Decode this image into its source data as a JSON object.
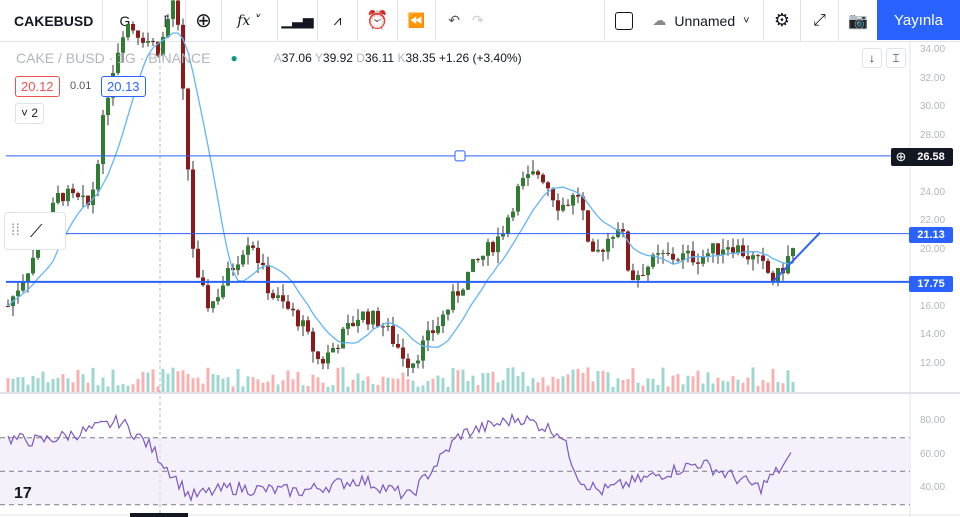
{
  "toolbar": {
    "symbol": "CAKEBUSD",
    "interval": "G",
    "layout_name": "Unnamed",
    "publish": "Yayınla"
  },
  "legend": {
    "title": "CAKE / BUSD · 1G · BINANCE",
    "open_label": "A",
    "open": "37.06",
    "high_label": "Y",
    "high": "39.92",
    "low_label": "D",
    "low": "36.11",
    "close_label": "K",
    "close": "38.35",
    "change": "+1.26 (+3.40%)",
    "sell": "20.12",
    "spread": "0.01",
    "buy": "20.13",
    "indicators_toggle": "2"
  },
  "price_axis": [
    "34.00",
    "32.00",
    "30.00",
    "28.00",
    "24.00",
    "22.00",
    "20.00",
    "16.00",
    "14.00",
    "12.00"
  ],
  "rsi_axis": [
    "80.00",
    "60.00",
    "40.00"
  ],
  "price_labels": {
    "hline_top": "26.58",
    "hline_mid": "21.13",
    "hline_low": "17.75"
  },
  "colors": {
    "up": "#26a69a",
    "down": "#ef5350",
    "accent": "#2962ff",
    "ma": "#64b5f6",
    "rsi": "#7e57c2"
  },
  "chart_data": {
    "type": "candlestick",
    "price_path": [
      [
        0,
        15
      ],
      [
        30,
        19
      ],
      [
        60,
        24
      ],
      [
        90,
        23
      ],
      [
        110,
        32
      ],
      [
        125,
        36
      ],
      [
        160,
        34
      ],
      [
        175,
        38
      ],
      [
        185,
        29
      ],
      [
        195,
        18
      ],
      [
        210,
        16
      ],
      [
        250,
        21
      ],
      [
        270,
        17
      ],
      [
        300,
        15
      ],
      [
        320,
        12
      ],
      [
        360,
        15.5
      ],
      [
        380,
        15
      ],
      [
        410,
        12
      ],
      [
        440,
        15
      ],
      [
        470,
        18.5
      ],
      [
        500,
        21
      ],
      [
        520,
        24.5
      ],
      [
        540,
        25.5
      ],
      [
        560,
        23
      ],
      [
        580,
        24
      ],
      [
        590,
        19
      ],
      [
        620,
        22
      ],
      [
        630,
        18
      ],
      [
        660,
        19.5
      ],
      [
        700,
        19.5
      ],
      [
        730,
        20.5
      ],
      [
        760,
        19
      ],
      [
        775,
        17.8
      ],
      [
        793,
        20
      ]
    ],
    "rsi_path": [
      [
        0,
        70
      ],
      [
        40,
        68
      ],
      [
        80,
        73
      ],
      [
        120,
        80
      ],
      [
        150,
        65
      ],
      [
        190,
        35
      ],
      [
        230,
        40
      ],
      [
        300,
        38
      ],
      [
        360,
        45
      ],
      [
        410,
        35
      ],
      [
        460,
        72
      ],
      [
        520,
        82
      ],
      [
        560,
        73
      ],
      [
        580,
        45
      ],
      [
        600,
        38
      ],
      [
        700,
        55
      ],
      [
        760,
        40
      ],
      [
        793,
        59
      ]
    ],
    "hlines": [
      26.58,
      21.13,
      17.75
    ],
    "rsi_levels": [
      70,
      50,
      30
    ]
  }
}
